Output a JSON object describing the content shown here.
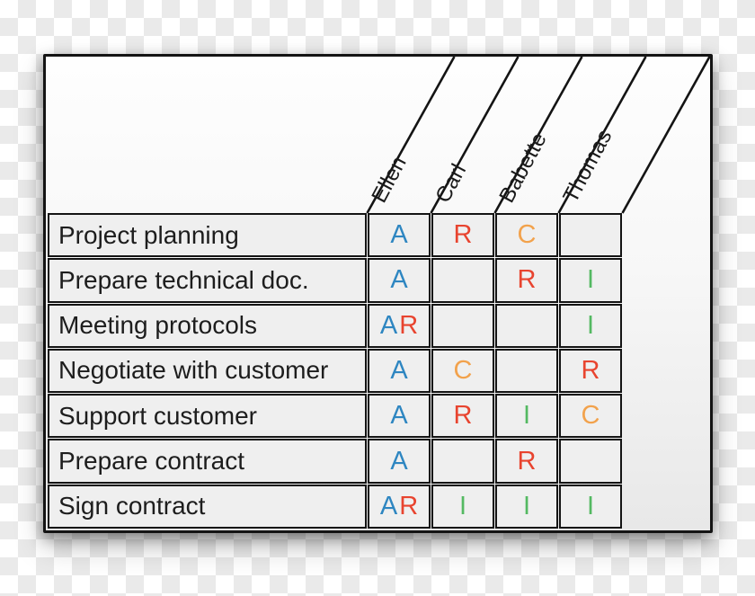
{
  "matrix": {
    "people": [
      "Ellen",
      "Carl",
      "Babette",
      "Thomas"
    ],
    "rows": [
      {
        "task": "Project planning",
        "cells": [
          "A",
          "R",
          "C",
          ""
        ]
      },
      {
        "task": "Prepare technical doc.",
        "cells": [
          "A",
          "",
          "R",
          "I"
        ]
      },
      {
        "task": "Meeting protocols",
        "cells": [
          "AR",
          "",
          "",
          "I"
        ]
      },
      {
        "task": "Negotiate with customer",
        "cells": [
          "A",
          "C",
          "",
          "R"
        ]
      },
      {
        "task": "Support customer",
        "cells": [
          "A",
          "R",
          "I",
          "C"
        ]
      },
      {
        "task": "Prepare contract",
        "cells": [
          "A",
          "",
          "R",
          ""
        ]
      },
      {
        "task": "Sign contract",
        "cells": [
          "AR",
          "I",
          "I",
          "I"
        ]
      }
    ],
    "letter_colors": {
      "A": "#2e86c1",
      "R": "#e8442f",
      "C": "#f2a24c",
      "I": "#54b962"
    },
    "colors": {
      "border": "#141414",
      "task_text": "#1d1d1d",
      "checker_light": "#ffffff",
      "checker_dark": "#eaeaea"
    }
  }
}
